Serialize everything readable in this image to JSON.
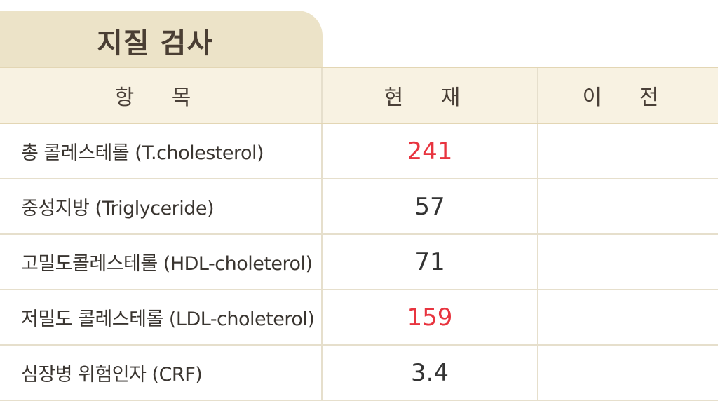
{
  "title": "지질 검사",
  "headers": {
    "item": "항 목",
    "current": "현 재",
    "previous": "이 전"
  },
  "rows": [
    {
      "item": "총 콜레스테롤 (T.cholesterol)",
      "current": "241",
      "previous": "",
      "status": "high"
    },
    {
      "item": "중성지방 (Triglyceride)",
      "current": "57",
      "previous": "",
      "status": "normal"
    },
    {
      "item": "고밀도콜레스테롤 (HDL-choleterol)",
      "current": "71",
      "previous": "",
      "status": "normal"
    },
    {
      "item": "저밀도 콜레스테롤 (LDL-choleterol)",
      "current": "159",
      "previous": "",
      "status": "high"
    },
    {
      "item": "심장병 위험인자 (CRF)",
      "current": "3.4",
      "previous": "",
      "status": "normal"
    }
  ],
  "colors": {
    "high_value": "#e8343f",
    "normal_value": "#333333",
    "tab_background": "#ece3c8"
  }
}
